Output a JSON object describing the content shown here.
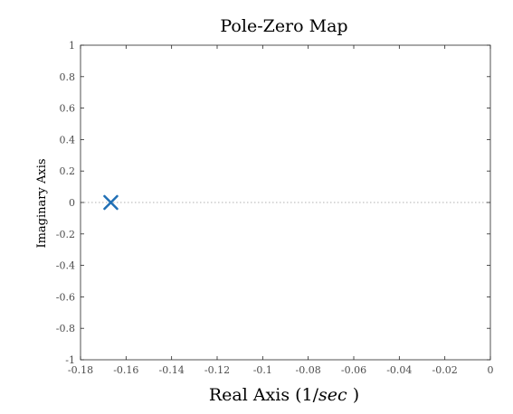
{
  "chart_data": {
    "type": "scatter",
    "title": "Pole-Zero Map",
    "xlabel_text": "Real Axis (1/",
    "xlabel_unit": "sec",
    "xlabel_close": " )",
    "ylabel": "Imaginary Axis",
    "xlim": [
      -0.18,
      0
    ],
    "ylim": [
      -1,
      1
    ],
    "xticks": [
      -0.18,
      -0.16,
      -0.14,
      -0.12,
      -0.1,
      -0.08,
      -0.06,
      -0.04,
      -0.02,
      0
    ],
    "xtick_labels": [
      "-0.18",
      "-0.16",
      "-0.14",
      "-0.12",
      "-0.1",
      "-0.08",
      "-0.06",
      "-0.04",
      "-0.02",
      "0"
    ],
    "yticks": [
      -1,
      -0.8,
      -0.6,
      -0.4,
      -0.2,
      0,
      0.2,
      0.4,
      0.6,
      0.8,
      1
    ],
    "ytick_labels": [
      "-1",
      "-0.8",
      "-0.6",
      "-0.4",
      "-0.2",
      "0",
      "0.2",
      "0.4",
      "0.6",
      "0.8",
      "1"
    ],
    "grid": false,
    "zero_line": true,
    "poles": [
      {
        "x": -0.1667,
        "y": 0
      }
    ],
    "zeros": [],
    "marker_color": "#1f6fb5",
    "axis_color": "#262626"
  }
}
